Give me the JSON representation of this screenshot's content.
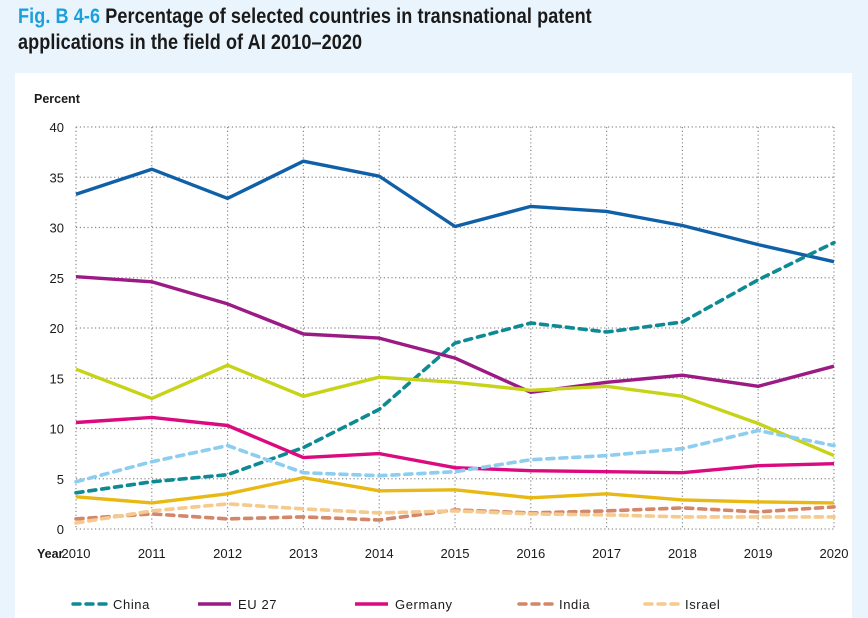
{
  "header": {
    "fig_label": "Fig. B 4-6",
    "title_line1": "Percentage of selected countries in transnational patent",
    "title_line2": "applications in the field of AI 2010–2020"
  },
  "colors": {
    "background": "#eaf4fc",
    "panel": "#ffffff",
    "fig_label": "#1aa0dc"
  },
  "chart_data": {
    "type": "line",
    "title": "Percentage of selected countries in transnational patent applications in the field of AI 2010–2020",
    "ylabel": "Percent",
    "xlabel": "Year",
    "x": [
      "2010",
      "2011",
      "2012",
      "2013",
      "2014",
      "2015",
      "2016",
      "2017",
      "2018",
      "2019",
      "2020"
    ],
    "ylim": [
      0,
      40
    ],
    "yticks": [
      "0",
      "5",
      "10",
      "15",
      "20",
      "25",
      "30",
      "35",
      "40"
    ],
    "grid": true,
    "legend_position": "bottom",
    "series": [
      {
        "name": "",
        "color": "#1060a8",
        "dash": false,
        "in_legend": false,
        "values": [
          33.3,
          35.8,
          32.9,
          36.6,
          35.1,
          30.1,
          32.1,
          31.6,
          30.2,
          28.3,
          26.6
        ]
      },
      {
        "name": "China",
        "color": "#0e8a94",
        "dash": true,
        "in_legend": true,
        "values": [
          3.6,
          4.7,
          5.4,
          8.1,
          11.9,
          18.5,
          20.5,
          19.6,
          20.6,
          24.8,
          28.5
        ]
      },
      {
        "name": "EU 27",
        "color": "#9c1a84",
        "dash": false,
        "in_legend": true,
        "values": [
          25.1,
          24.6,
          22.4,
          19.4,
          19.0,
          17.0,
          13.6,
          14.6,
          15.3,
          14.2,
          16.2
        ]
      },
      {
        "name": "",
        "color": "#c6d316",
        "dash": false,
        "in_legend": false,
        "values": [
          15.9,
          13.0,
          16.3,
          13.2,
          15.1,
          14.6,
          13.8,
          14.2,
          13.2,
          10.5,
          7.3
        ]
      },
      {
        "name": "Germany",
        "color": "#db0a7e",
        "dash": false,
        "in_legend": true,
        "values": [
          10.6,
          11.1,
          10.3,
          7.1,
          7.5,
          6.1,
          5.8,
          5.7,
          5.6,
          6.3,
          6.5
        ]
      },
      {
        "name": "",
        "color": "#8ccdf0",
        "dash": true,
        "in_legend": false,
        "values": [
          4.7,
          6.7,
          8.3,
          5.6,
          5.3,
          5.7,
          6.9,
          7.3,
          8.0,
          9.8,
          8.3
        ]
      },
      {
        "name": "",
        "color": "#e8b914",
        "dash": false,
        "in_legend": false,
        "values": [
          3.2,
          2.6,
          3.5,
          5.1,
          3.8,
          3.9,
          3.1,
          3.5,
          2.9,
          2.7,
          2.6
        ]
      },
      {
        "name": "India",
        "color": "#d4866a",
        "dash": true,
        "in_legend": true,
        "values": [
          1.0,
          1.5,
          1.0,
          1.2,
          0.9,
          1.9,
          1.6,
          1.8,
          2.1,
          1.7,
          2.2
        ]
      },
      {
        "name": "Israel",
        "color": "#f6c98c",
        "dash": true,
        "in_legend": true,
        "values": [
          0.6,
          1.8,
          2.5,
          2.0,
          1.6,
          1.8,
          1.5,
          1.4,
          1.2,
          1.2,
          1.2
        ]
      }
    ],
    "legend": [
      "China",
      "EU 27",
      "Germany",
      "India",
      "Israel"
    ]
  }
}
